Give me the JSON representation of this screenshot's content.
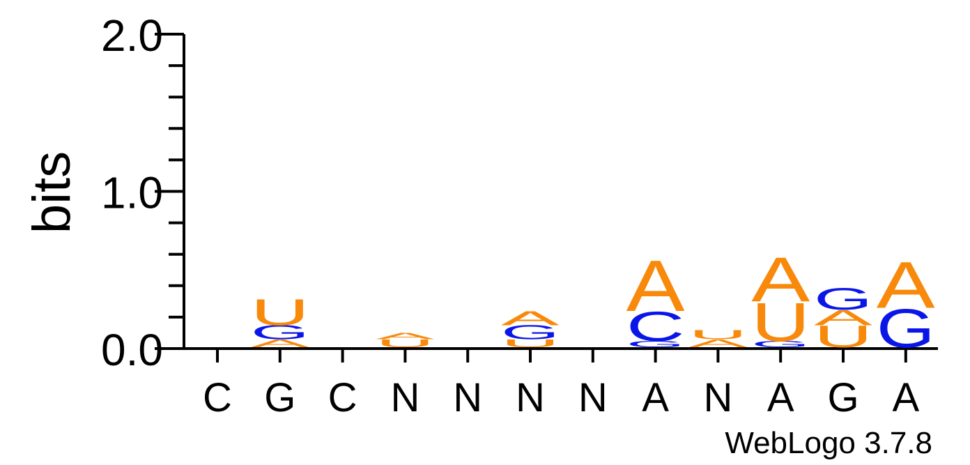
{
  "chart_data": {
    "type": "sequence-logo",
    "ylabel": "bits",
    "ylim": [
      0,
      2
    ],
    "yticks": [
      "0.0",
      "1.0",
      "2.0"
    ],
    "xlabels": [
      "C",
      "G",
      "C",
      "N",
      "N",
      "N",
      "N",
      "A",
      "N",
      "A",
      "G",
      "A"
    ],
    "footer": "WebLogo 3.7.8",
    "colors": {
      "A": "#f8890b",
      "U": "#f8890b",
      "G": "#0a16e8",
      "C": "#0a16e8"
    },
    "stacks": [
      [],
      [
        {
          "letter": "A",
          "bits": 0.05
        },
        {
          "letter": "G",
          "bits": 0.09
        },
        {
          "letter": "U",
          "bits": 0.17
        }
      ],
      [],
      [
        {
          "letter": "U",
          "bits": 0.05
        },
        {
          "letter": "A",
          "bits": 0.04
        }
      ],
      [],
      [
        {
          "letter": "U",
          "bits": 0.05
        },
        {
          "letter": "G",
          "bits": 0.09
        },
        {
          "letter": "A",
          "bits": 0.09
        }
      ],
      [],
      [
        {
          "letter": "G",
          "bits": 0.04
        },
        {
          "letter": "C",
          "bits": 0.19
        },
        {
          "letter": "A",
          "bits": 0.33
        }
      ],
      [
        {
          "letter": "A",
          "bits": 0.05
        },
        {
          "letter": "U",
          "bits": 0.06
        }
      ],
      [
        {
          "letter": "G",
          "bits": 0.04
        },
        {
          "letter": "U",
          "bits": 0.25
        },
        {
          "letter": "A",
          "bits": 0.29
        }
      ],
      [
        {
          "letter": "U",
          "bits": 0.14
        },
        {
          "letter": "A",
          "bits": 0.1
        },
        {
          "letter": "G",
          "bits": 0.14
        }
      ],
      [
        {
          "letter": "G",
          "bits": 0.25
        },
        {
          "letter": "A",
          "bits": 0.3
        }
      ]
    ]
  }
}
